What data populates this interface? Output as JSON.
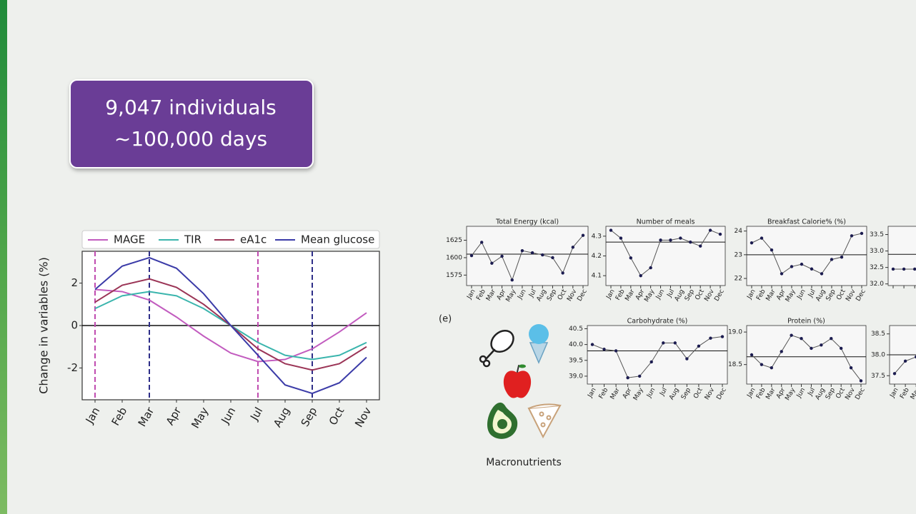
{
  "callout": {
    "line1": "9,047 individuals",
    "line2": "~100,000 days"
  },
  "panel_label": "(e)",
  "icons_label": "Macronutrients",
  "chart_data": [
    {
      "type": "line",
      "ylabel": "Change in variables (%)",
      "categories": [
        "Jan",
        "Feb",
        "Mar",
        "Apr",
        "May",
        "Jun",
        "Jul",
        "Aug",
        "Sep",
        "Oct",
        "Nov"
      ],
      "series": [
        {
          "name": "MAGE",
          "color": "#c25cbf",
          "values": [
            1.7,
            1.6,
            1.2,
            0.4,
            -0.5,
            -1.3,
            -1.7,
            -1.6,
            -1.1,
            -0.3,
            0.6
          ]
        },
        {
          "name": "TIR",
          "color": "#3bb5ad",
          "values": [
            0.8,
            1.4,
            1.6,
            1.4,
            0.8,
            0.0,
            -0.8,
            -1.4,
            -1.6,
            -1.4,
            -0.8
          ]
        },
        {
          "name": "eA1c",
          "color": "#9b3456",
          "values": [
            1.1,
            1.9,
            2.2,
            1.8,
            1.0,
            0.0,
            -1.1,
            -1.8,
            -2.1,
            -1.8,
            -1.0
          ]
        },
        {
          "name": "Mean glucose",
          "color": "#3b3ba8",
          "values": [
            1.7,
            2.8,
            3.2,
            2.7,
            1.5,
            0.0,
            -1.4,
            -2.8,
            -3.2,
            -2.7,
            -1.5
          ]
        }
      ],
      "ylim": [
        -3.5,
        3.5
      ],
      "yticks": [
        -2,
        0,
        2
      ],
      "hline": 0,
      "vlines": [
        {
          "x": "Jan",
          "color": "#c04cb0"
        },
        {
          "x": "Mar",
          "color": "#2e2e88"
        },
        {
          "x": "Jul",
          "color": "#c04cb0"
        },
        {
          "x": "Sep",
          "color": "#2e2e88"
        }
      ]
    },
    {
      "type": "line",
      "title": "Total Energy (kcal)",
      "categories": [
        "Jan",
        "Feb",
        "Mar",
        "Apr",
        "May",
        "Jun",
        "Jul",
        "Aug",
        "Sep",
        "Oct",
        "Nov",
        "Dec"
      ],
      "values": [
        1603,
        1622,
        1592,
        1602,
        1568,
        1610,
        1607,
        1604,
        1600,
        1578,
        1615,
        1632
      ],
      "color": "#1c1c50",
      "ylim": [
        1560,
        1645
      ],
      "yticks": [
        1575,
        1600,
        1625
      ],
      "hline": 1605
    },
    {
      "type": "line",
      "title": "Number of meals",
      "categories": [
        "Jan",
        "Feb",
        "Mar",
        "Apr",
        "May",
        "Jun",
        "Jul",
        "Aug",
        "Sep",
        "Oct",
        "Nov",
        "Dec"
      ],
      "values": [
        4.33,
        4.29,
        4.19,
        4.1,
        4.14,
        4.28,
        4.28,
        4.29,
        4.27,
        4.25,
        4.33,
        4.31
      ],
      "color": "#1c1c50",
      "ylim": [
        4.05,
        4.35
      ],
      "yticks": [
        4.1,
        4.2,
        4.3
      ],
      "hline": 4.27
    },
    {
      "type": "line",
      "title": "Breakfast Calorie% (%)",
      "categories": [
        "Jan",
        "Feb",
        "Mar",
        "Apr",
        "May",
        "Jun",
        "Jul",
        "Aug",
        "Sep",
        "Oct",
        "Nov",
        "Dec"
      ],
      "values": [
        23.5,
        23.7,
        23.2,
        22.2,
        22.5,
        22.6,
        22.4,
        22.2,
        22.8,
        22.9,
        23.8,
        23.9
      ],
      "color": "#1c1c50",
      "ylim": [
        21.7,
        24.2
      ],
      "yticks": [
        22,
        23,
        24
      ],
      "hline": 23
    },
    {
      "type": "line",
      "categories": [
        null,
        null,
        null
      ],
      "values": [
        32.45,
        32.45,
        32.45
      ],
      "color": "#1c1c50",
      "ylim": [
        31.95,
        33.75
      ],
      "yticks": [
        {
          "value": 32,
          "label": "32.0"
        },
        32.5,
        {
          "value": 33,
          "label": "33.0"
        },
        33.5
      ],
      "hline": 32.9
    },
    {
      "type": "line",
      "title": "Carbohydrate (%)",
      "categories": [
        "Jan",
        "Feb",
        "Mar",
        "Apr",
        "May",
        "Jun",
        "Jul",
        "Aug",
        "Sep",
        "Oct",
        "Nov",
        "Dec"
      ],
      "values": [
        40.0,
        39.85,
        39.8,
        38.95,
        39.0,
        39.45,
        40.05,
        40.05,
        39.55,
        39.95,
        40.2,
        40.25
      ],
      "color": "#1c1c50",
      "ylim": [
        38.75,
        40.6
      ],
      "yticks": [
        {
          "value": 39,
          "label": "39.0"
        },
        39.5,
        {
          "value": 40,
          "label": "40.0"
        },
        40.5
      ],
      "hline": 39.8
    },
    {
      "type": "line",
      "title": "Protein (%)",
      "categories": [
        "Jan",
        "Feb",
        "Mar",
        "Apr",
        "May",
        "Jun",
        "Jul",
        "Aug",
        "Sep",
        "Oct",
        "Nov",
        "Dec"
      ],
      "values": [
        18.65,
        18.5,
        18.45,
        18.7,
        18.95,
        18.9,
        18.75,
        18.8,
        18.9,
        18.75,
        18.45,
        18.25
      ],
      "color": "#1c1c50",
      "ylim": [
        18.2,
        19.1
      ],
      "yticks": [
        18.5,
        {
          "value": 19,
          "label": "19.0"
        }
      ],
      "hline": 18.62
    },
    {
      "type": "line",
      "categories": [
        "Jan",
        "Feb",
        "Mar"
      ],
      "values": [
        37.55,
        37.85,
        37.95
      ],
      "color": "#1c1c50",
      "ylim": [
        37.3,
        38.7
      ],
      "yticks": [
        37.5,
        {
          "value": 38,
          "label": "38.0"
        },
        38.5
      ],
      "hline": 38.0
    }
  ]
}
